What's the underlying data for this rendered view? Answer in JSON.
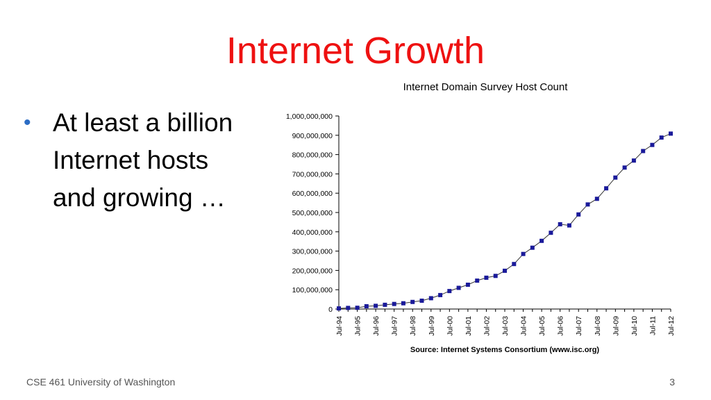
{
  "slide": {
    "title": "Internet Growth",
    "bullets": [
      {
        "marker": "•",
        "lines": [
          "At least a billion",
          "Internet hosts",
          "and growing …"
        ]
      }
    ]
  },
  "footer": {
    "course": "CSE 461 University of Washington",
    "page_number": "3"
  },
  "chart_data": {
    "type": "line",
    "title": "Internet Domain Survey Host Count",
    "source": "Source: Internet Systems Consortium (www.isc.org)",
    "xlabel": "",
    "ylabel": "",
    "ylim": [
      0,
      1000000000
    ],
    "y_ticks": [
      "0",
      "100,000,000",
      "200,000,000",
      "300,000,000",
      "400,000,000",
      "500,000,000",
      "600,000,000",
      "700,000,000",
      "800,000,000",
      "900,000,000",
      "1,000,000,000"
    ],
    "x_tick_labels": [
      "Jul-94",
      "Jul-95",
      "Jul-96",
      "Jul-97",
      "Jul-98",
      "Jul-99",
      "Jul-00",
      "Jul-01",
      "Jul-02",
      "Jul-03",
      "Jul-04",
      "Jul-05",
      "Jul-06",
      "Jul-07",
      "Jul-08",
      "Jul-09",
      "Jul-10",
      "Jul-11",
      "Jul-12"
    ],
    "marker_color": "#1a1a9a",
    "line_color": "#333333",
    "series": [
      {
        "x": [
          "Jul-94",
          "Jan-95",
          "Jul-95",
          "Jan-96",
          "Jul-96",
          "Jan-97",
          "Jul-97",
          "Jan-98",
          "Jul-98",
          "Jan-99",
          "Jul-99",
          "Jan-00",
          "Jul-00",
          "Jan-01",
          "Jul-01",
          "Jan-02",
          "Jul-02",
          "Jan-03",
          "Jul-03",
          "Jan-04",
          "Jul-04",
          "Jan-05",
          "Jul-05",
          "Jan-06",
          "Jul-06",
          "Jan-07",
          "Jul-07",
          "Jan-08",
          "Jul-08",
          "Jan-09",
          "Jul-09",
          "Jan-10",
          "Jul-10",
          "Jan-11",
          "Jul-11",
          "Jan-12",
          "Jul-12"
        ],
        "values": [
          3200000,
          5800000,
          6600000,
          14300000,
          16700000,
          21800000,
          26100000,
          29700000,
          36700000,
          43200000,
          56200000,
          72400000,
          93000000,
          109600000,
          125900000,
          147300000,
          162100000,
          171600000,
          198200000,
          233100000,
          285100000,
          317600000,
          353300000,
          394900000,
          439300000,
          433200000,
          489800000,
          541700000,
          570900000,
          625200000,
          681100000,
          732700000,
          768900000,
          818400000,
          849900000,
          888200000,
          908600000
        ]
      }
    ]
  }
}
